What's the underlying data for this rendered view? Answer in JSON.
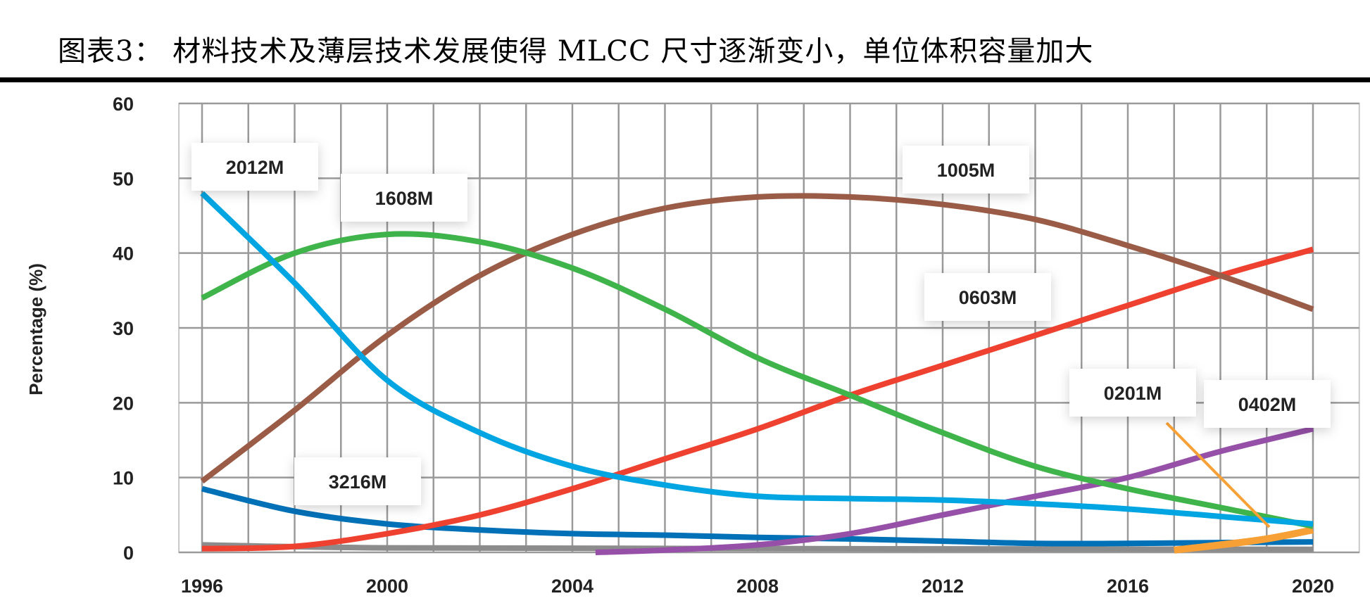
{
  "title": "图表3：  材料技术及薄层技术发展使得 MLCC 尺寸逐渐变小，单位体积容量加大",
  "chart_data": {
    "type": "line",
    "title": "",
    "xlabel": "",
    "ylabel": "Percentage (%)",
    "xlim": [
      1995.5,
      2021
    ],
    "ylim": [
      0,
      60
    ],
    "x_ticks": [
      "1996",
      "2000",
      "2004",
      "2008",
      "2012",
      "2016",
      "2020"
    ],
    "y_ticks": [
      "0",
      "10",
      "20",
      "30",
      "40",
      "50",
      "60"
    ],
    "grid": true,
    "series": [
      {
        "name": "2012M",
        "color": "#00a5e2",
        "x": [
          1996,
          1998,
          2000,
          2002,
          2004,
          2006,
          2008,
          2010,
          2012,
          2014,
          2016,
          2018,
          2020
        ],
        "values": [
          48,
          36,
          23,
          16,
          11.5,
          9,
          7.5,
          7.2,
          7,
          6.5,
          5.8,
          4.8,
          3.8
        ]
      },
      {
        "name": "1608M",
        "color": "#3fb44b",
        "x": [
          1996,
          1998,
          2000,
          2002,
          2004,
          2006,
          2008,
          2010,
          2012,
          2014,
          2016,
          2018,
          2020
        ],
        "values": [
          34,
          40,
          42.5,
          41.5,
          38,
          32.5,
          26,
          21,
          16,
          11.5,
          8.5,
          6,
          3.5
        ]
      },
      {
        "name": "1005M",
        "color": "#9b5c47",
        "x": [
          1996,
          1998,
          2000,
          2002,
          2004,
          2006,
          2008,
          2010,
          2012,
          2014,
          2016,
          2018,
          2020
        ],
        "values": [
          9.5,
          19,
          29,
          37,
          42.5,
          46,
          47.5,
          47.5,
          46.5,
          44.5,
          41,
          37,
          32.5
        ]
      },
      {
        "name": "0603M",
        "color": "#ef4130",
        "x": [
          1996,
          1998,
          2000,
          2002,
          2004,
          2006,
          2008,
          2010,
          2012,
          2014,
          2016,
          2018,
          2020
        ],
        "values": [
          0.5,
          0.8,
          2.5,
          5,
          8.5,
          12.5,
          16.5,
          21,
          25,
          29,
          33,
          37,
          40.5
        ]
      },
      {
        "name": "0402M",
        "color": "#9650a8",
        "x": [
          2004.5,
          2006,
          2008,
          2010,
          2012,
          2014,
          2016,
          2018,
          2020
        ],
        "values": [
          0,
          0.3,
          1,
          2.5,
          5,
          7.5,
          10,
          13.5,
          16.5
        ]
      },
      {
        "name": "0201M",
        "color": "#f7a035",
        "x": [
          2017,
          2018,
          2019,
          2020
        ],
        "values": [
          0.3,
          1,
          1.8,
          3
        ]
      },
      {
        "name": "3216M",
        "color": "#0070b7",
        "x": [
          1996,
          1998,
          2000,
          2002,
          2004,
          2006,
          2008,
          2010,
          2012,
          2014,
          2016,
          2018,
          2020
        ],
        "values": [
          8.5,
          5.5,
          3.8,
          3,
          2.5,
          2.3,
          2,
          1.8,
          1.5,
          1.2,
          1.2,
          1.3,
          1.4
        ]
      },
      {
        "color": "#8c8c8c",
        "x": [
          1996,
          2000,
          2008,
          2020
        ],
        "values": [
          1,
          0.6,
          0.5,
          0.4
        ]
      }
    ]
  }
}
